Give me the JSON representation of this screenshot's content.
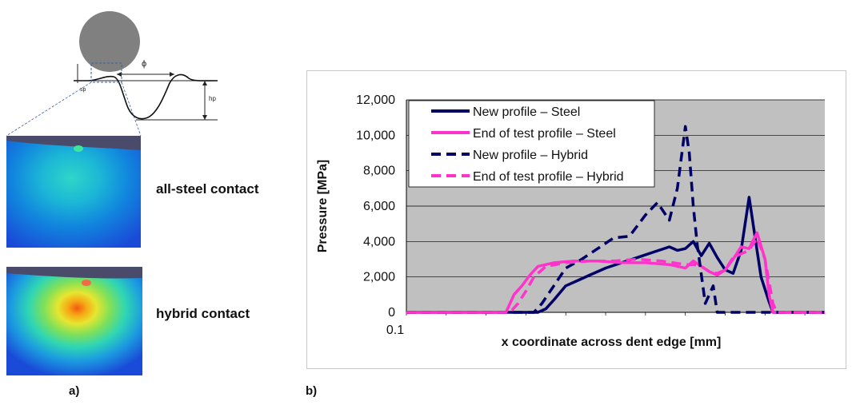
{
  "panel_a": {
    "label": "a)",
    "schematic": {
      "phi_symbol": "ϕ",
      "s_label": "sp",
      "h_label": "hp"
    },
    "contacts": [
      {
        "label": "all-steel contact"
      },
      {
        "label": "hybrid contact"
      }
    ]
  },
  "panel_b": {
    "label": "b)"
  },
  "colors": {
    "steel": "#000066",
    "hybrid_magenta": "#ff33cc",
    "plot_bg": "#c0c0c0"
  },
  "chart_data": {
    "type": "line",
    "title": "",
    "xlabel": "x coordinate across dent edge [mm]",
    "ylabel": "Pressure [MPa]",
    "x_tick_labels": [
      "0.1"
    ],
    "xlim": [
      0,
      1.05
    ],
    "ylim": [
      0,
      12000
    ],
    "yticks": [
      0,
      2000,
      4000,
      6000,
      8000,
      10000,
      12000
    ],
    "ytick_labels": [
      "0",
      "2,000",
      "4,000",
      "6,000",
      "8,000",
      "10,000",
      "12,000"
    ],
    "grid": true,
    "legend_position": "top-left",
    "series": [
      {
        "name": "New profile – Steel",
        "color": "#000066",
        "dash": "solid",
        "x": [
          0,
          0.3,
          0.33,
          0.35,
          0.37,
          0.4,
          0.43,
          0.46,
          0.5,
          0.54,
          0.58,
          0.62,
          0.66,
          0.68,
          0.7,
          0.72,
          0.74,
          0.76,
          0.78,
          0.8,
          0.82,
          0.84,
          0.86,
          0.88,
          0.89,
          0.91,
          0.92,
          0.94,
          0.955,
          0.97,
          1.05
        ],
        "y": [
          0,
          0,
          0,
          200,
          700,
          1500,
          1800,
          2100,
          2500,
          2800,
          3100,
          3400,
          3700,
          3500,
          3600,
          4000,
          3200,
          3900,
          3100,
          2400,
          2200,
          3500,
          6500,
          3500,
          2000,
          600,
          0,
          0,
          0,
          0,
          0
        ]
      },
      {
        "name": "End of test profile – Steel",
        "color": "#ff33cc",
        "dash": "solid",
        "x": [
          0,
          0.25,
          0.27,
          0.29,
          0.31,
          0.33,
          0.37,
          0.42,
          0.48,
          0.54,
          0.6,
          0.66,
          0.7,
          0.72,
          0.74,
          0.76,
          0.78,
          0.8,
          0.82,
          0.84,
          0.86,
          0.88,
          0.9,
          0.91,
          0.92,
          0.94,
          1.05
        ],
        "y": [
          0,
          0,
          1000,
          1500,
          2100,
          2600,
          2800,
          2900,
          2900,
          2800,
          2800,
          2700,
          2500,
          2900,
          2600,
          2300,
          2100,
          2400,
          3000,
          3700,
          3600,
          4500,
          3000,
          1000,
          0,
          0,
          0
        ]
      },
      {
        "name": "New profile – Hybrid",
        "color": "#000066",
        "dash": "dashed",
        "x": [
          0,
          0.32,
          0.34,
          0.37,
          0.4,
          0.44,
          0.48,
          0.52,
          0.56,
          0.6,
          0.63,
          0.66,
          0.68,
          0.7,
          0.71,
          0.72,
          0.73,
          0.75,
          0.77,
          0.78,
          0.8,
          0.82,
          0.84,
          0.86,
          1.05
        ],
        "y": [
          0,
          0,
          500,
          1500,
          2500,
          3000,
          3600,
          4200,
          4300,
          5500,
          6200,
          5200,
          7000,
          10500,
          9000,
          6000,
          3800,
          500,
          1500,
          0,
          0,
          0,
          0,
          0,
          0
        ]
      },
      {
        "name": "End of test profile – Hybrid",
        "color": "#ff33cc",
        "dash": "dashed",
        "x": [
          0,
          0.26,
          0.28,
          0.3,
          0.32,
          0.35,
          0.4,
          0.46,
          0.52,
          0.58,
          0.64,
          0.7,
          0.72,
          0.74,
          0.76,
          0.78,
          0.8,
          0.82,
          0.84,
          0.86,
          0.88,
          0.9,
          0.92,
          0.93,
          1.05
        ],
        "y": [
          0,
          0,
          500,
          1200,
          2000,
          2600,
          2800,
          2900,
          2900,
          3000,
          2900,
          2700,
          2700,
          2600,
          2300,
          2200,
          2400,
          3100,
          3300,
          3500,
          4200,
          3000,
          500,
          0,
          0
        ]
      }
    ]
  }
}
